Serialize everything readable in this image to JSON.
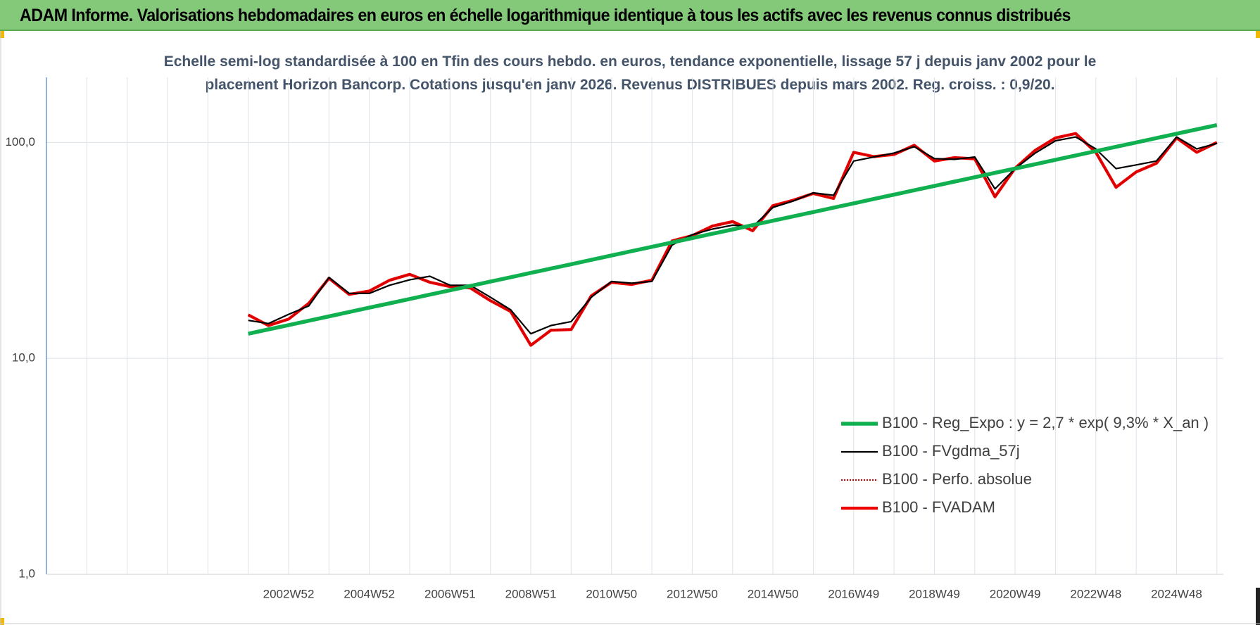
{
  "chart_data": {
    "type": "line",
    "title": "ADAM Informe. Valorisations hebdomadaires en euros en échelle logarithmique identique à tous les actifs avec les revenus connus distribués",
    "subtitle": [
      "Echelle semi-log standardisée à 100 en Tfin des cours hebdo. en euros, tendance exponentielle, lissage 57 j depuis janv 2002 pour le",
      "placement Horizon Bancorp. Cotations jusqu'en janv 2026. Revenus DISTRIBUES depuis mars 2002. Reg. croiss. : 0,9/20."
    ],
    "log_y": true,
    "grid": true,
    "legend": "right",
    "xlim": [
      1997,
      2026.16
    ],
    "xticks": [
      {
        "value": 2003,
        "label": "2002W52"
      },
      {
        "value": 2005,
        "label": "2004W52"
      },
      {
        "value": 2007,
        "label": "2006W51"
      },
      {
        "value": 2009,
        "label": "2008W51"
      },
      {
        "value": 2011,
        "label": "2010W50"
      },
      {
        "value": 2013,
        "label": "2012W50"
      },
      {
        "value": 2015,
        "label": "2014W50"
      },
      {
        "value": 2017,
        "label": "2016W49"
      },
      {
        "value": 2019,
        "label": "2018W49"
      },
      {
        "value": 2021,
        "label": "2020W49"
      },
      {
        "value": 2023,
        "label": "2022W48"
      },
      {
        "value": 2025,
        "label": "2024W48"
      }
    ],
    "xminorticks": [
      1997,
      1998,
      1999,
      2000,
      2001,
      2002,
      2003,
      2004,
      2005,
      2006,
      2007,
      2008,
      2009,
      2010,
      2011,
      2012,
      2013,
      2014,
      2015,
      2016,
      2017,
      2018,
      2019,
      2020,
      2021,
      2022,
      2023,
      2024,
      2025,
      2026
    ],
    "ylim": [
      1,
      200
    ],
    "yticks": [
      {
        "value": 1,
        "label": "1,0"
      },
      {
        "value": 10,
        "label": "10,0"
      },
      {
        "value": 100,
        "label": "100,0"
      }
    ],
    "x": [
      2002,
      2002.5,
      2003,
      2003.5,
      2004,
      2004.5,
      2005,
      2005.5,
      2006,
      2006.5,
      2007,
      2007.5,
      2008,
      2008.5,
      2009,
      2009.5,
      2010,
      2010.5,
      2011,
      2011.5,
      2012,
      2012.5,
      2013,
      2013.5,
      2014,
      2014.5,
      2015,
      2015.5,
      2016,
      2016.5,
      2017,
      2017.5,
      2018,
      2018.5,
      2019,
      2019.5,
      2020,
      2020.5,
      2021,
      2021.5,
      2022,
      2022.5,
      2023,
      2023.5,
      2024,
      2024.5,
      2025,
      2025.5,
      2026
    ],
    "series": [
      {
        "name": "B100 - Reg_Expo : y = 2,7 * exp( 9,3% *  X_an )",
        "color": "#10b050",
        "style": "solid",
        "values": [
          13.0,
          13.62,
          14.26,
          14.94,
          15.65,
          16.39,
          17.17,
          17.98,
          18.84,
          19.73,
          20.67,
          21.65,
          22.68,
          23.75,
          24.88,
          26.06,
          27.3,
          28.59,
          29.95,
          31.37,
          32.86,
          34.42,
          36.05,
          37.76,
          39.55,
          41.43,
          43.4,
          45.46,
          47.61,
          49.87,
          52.24,
          54.72,
          57.32,
          60.04,
          62.89,
          65.87,
          69.0,
          72.27,
          75.7,
          79.3,
          83.06,
          87.0,
          91.13,
          95.45,
          99.98,
          104.73,
          109.7,
          114.91,
          120.36
        ]
      },
      {
        "name": "B100 - FVgdma_57j",
        "color": "#000000",
        "style": "solid",
        "values": [
          15,
          14.5,
          16,
          17.5,
          23.7,
          20,
          20,
          21.8,
          23.1,
          24,
          21.8,
          21.8,
          19.2,
          16.8,
          13,
          14.2,
          14.8,
          19.2,
          22.7,
          22.3,
          22.7,
          33.5,
          37.4,
          39.7,
          41.4,
          40.7,
          50,
          53.5,
          58.4,
          56.9,
          82,
          85.6,
          89.3,
          95.6,
          84.2,
          83.5,
          85.6,
          60.9,
          75.6,
          89.3,
          101.8,
          106,
          93.3,
          75.6,
          78.7,
          82,
          106,
          93.3,
          99
        ]
      },
      {
        "name": "B100 - Perfo. absolue",
        "color": "#c00000",
        "style": "dotted",
        "values": [
          15.9,
          14.2,
          15.2,
          18,
          23.5,
          19.8,
          20.5,
          23,
          24.5,
          22.5,
          21.5,
          21.2,
          18.5,
          16.5,
          11.5,
          13.5,
          13.6,
          19.5,
          22.5,
          22,
          23,
          35,
          37,
          41,
          43,
          39,
          51,
          54,
          58,
          55,
          90,
          86,
          88,
          97,
          82,
          85,
          84,
          56,
          76,
          92,
          105,
          110,
          90,
          62,
          73,
          80,
          105,
          90,
          100
        ]
      },
      {
        "name": "B100 - FVADAM",
        "color": "#ee0000",
        "style": "solid",
        "values": [
          15.9,
          14.2,
          15.2,
          18,
          23.5,
          19.8,
          20.5,
          23,
          24.5,
          22.5,
          21.5,
          21.2,
          18.5,
          16.5,
          11.5,
          13.5,
          13.6,
          19.5,
          22.5,
          22,
          23,
          35,
          37,
          41,
          43,
          39,
          51,
          54,
          58,
          55,
          90,
          86,
          88,
          97,
          82,
          85,
          84,
          56,
          76,
          92,
          105,
          110,
          90,
          62,
          73,
          80,
          105,
          90,
          100
        ]
      }
    ]
  }
}
